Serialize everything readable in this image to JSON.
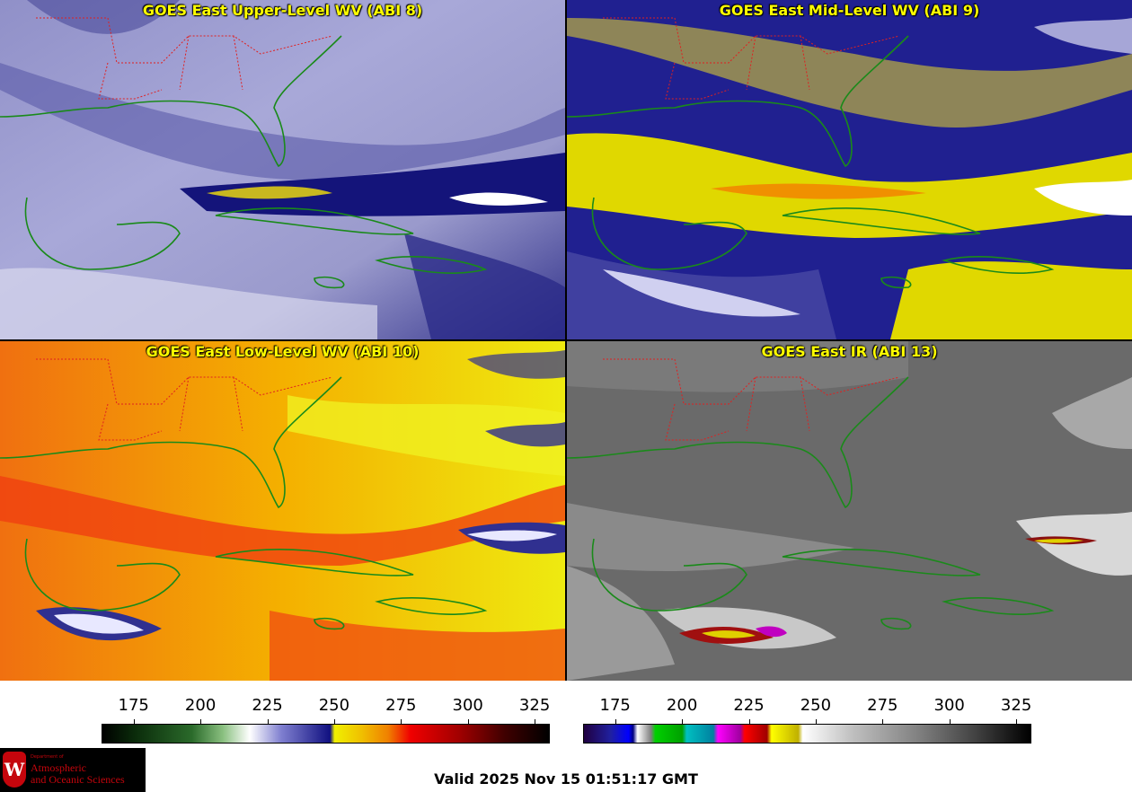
{
  "panels": [
    {
      "title": "GOES East Upper-Level WV (ABI 8)",
      "scheme": "wv-upper"
    },
    {
      "title": "GOES East Mid-Level WV (ABI 9)",
      "scheme": "wv-mid"
    },
    {
      "title": "GOES East Low-Level WV (ABI 10)",
      "scheme": "wv-low"
    },
    {
      "title": "GOES East IR (ABI 13)",
      "scheme": "ir"
    }
  ],
  "colorbars": {
    "wv_ticks": [
      "175",
      "200",
      "225",
      "250",
      "275",
      "300",
      "325"
    ],
    "ir_ticks": [
      "175",
      "200",
      "225",
      "250",
      "275",
      "300",
      "325"
    ]
  },
  "valid_time": "Valid 2025 Nov 15 01:51:17 GMT",
  "logo": {
    "dept": "Department of",
    "line1": "Atmospheric",
    "line2": "and Oceanic Sciences",
    "seal_letter": "W"
  },
  "colors": {
    "state_borders": "#e02020",
    "coastlines": "#1a8a1a"
  }
}
